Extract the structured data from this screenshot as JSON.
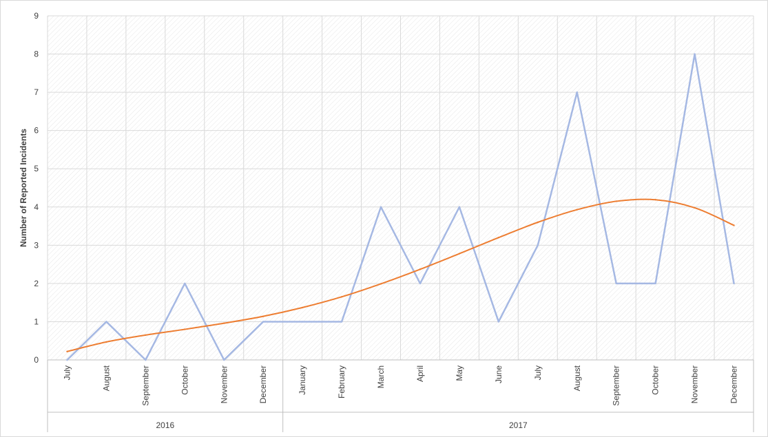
{
  "chart_data": {
    "type": "line",
    "title": "",
    "ylabel": "Number of Reported Incidents",
    "xlabel": "",
    "ylim": [
      0,
      9
    ],
    "y_ticks": [
      0,
      1,
      2,
      3,
      4,
      5,
      6,
      7,
      8,
      9
    ],
    "grid": true,
    "legend": "none",
    "categories": [
      "July",
      "August",
      "September",
      "October",
      "November",
      "December",
      "January",
      "February",
      "March",
      "April",
      "May",
      "June",
      "July",
      "August",
      "September",
      "October",
      "November",
      "December"
    ],
    "groups": [
      {
        "label": "2016",
        "count": 6
      },
      {
        "label": "2017",
        "count": 12
      }
    ],
    "series": [
      {
        "values": [
          0,
          1,
          0,
          2,
          0,
          1,
          1,
          1,
          4,
          2,
          4,
          1,
          3,
          7,
          2,
          2,
          8,
          2
        ],
        "color": "#a5b8e3"
      },
      {
        "values": [
          0.22,
          0.47,
          0.65,
          0.8,
          0.96,
          1.14,
          1.37,
          1.65,
          1.99,
          2.37,
          2.78,
          3.2,
          3.6,
          3.93,
          4.15,
          4.19,
          3.98,
          3.52
        ],
        "color": "#ed7d31",
        "smooth": true
      }
    ]
  }
}
